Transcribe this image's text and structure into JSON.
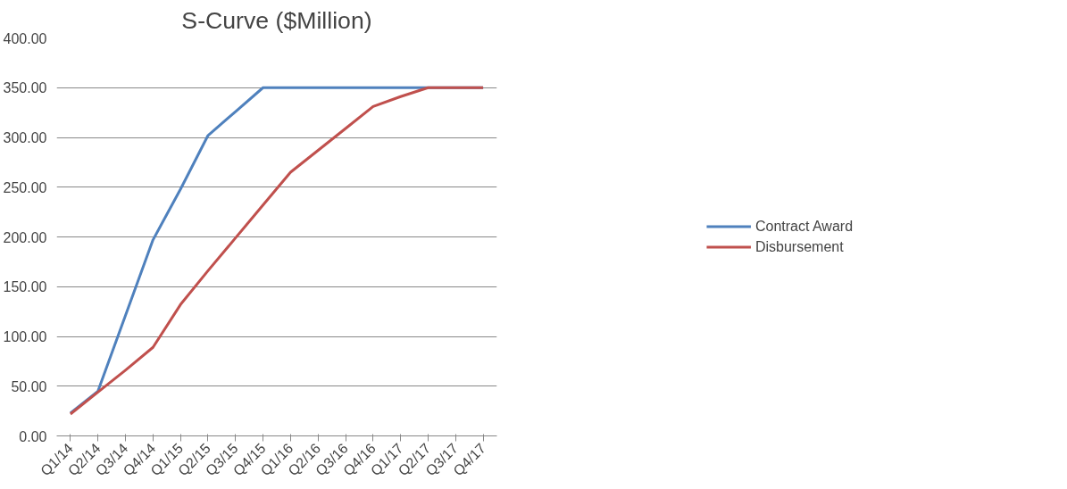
{
  "chart_data": {
    "type": "line",
    "title": "S-Curve ($Million)",
    "categories": [
      "Q1/14",
      "Q2/14",
      "Q3/14",
      "Q4/14",
      "Q1/15",
      "Q2/15",
      "Q3/15",
      "Q4/15",
      "Q1/16",
      "Q2/16",
      "Q3/16",
      "Q4/16",
      "Q1/17",
      "Q2/17",
      "Q3/17",
      "Q4/17"
    ],
    "series": [
      {
        "name": "Contract Award",
        "color": "#4f81bd",
        "values": [
          23,
          45,
          121,
          197,
          248,
          302,
          326,
          350,
          350,
          350,
          350,
          350,
          350,
          350,
          350,
          350
        ]
      },
      {
        "name": "Disbursement",
        "color": "#c0504d",
        "values": [
          22,
          44,
          66,
          89,
          132,
          166,
          199,
          232,
          265,
          287,
          309,
          331,
          341,
          350,
          350,
          350
        ]
      }
    ],
    "ylim": [
      0,
      400
    ],
    "yticks": [
      {
        "value": 0,
        "label": "0.00"
      },
      {
        "value": 50,
        "label": "50.00"
      },
      {
        "value": 100,
        "label": "100.00"
      },
      {
        "value": 150,
        "label": "150.00"
      },
      {
        "value": 200,
        "label": "200.00"
      },
      {
        "value": 250,
        "label": "250.00"
      },
      {
        "value": 300,
        "label": "300.00"
      },
      {
        "value": 350,
        "label": "350.00"
      },
      {
        "value": 400,
        "label": "400.00"
      }
    ],
    "grid": "y",
    "legend": "right",
    "marker": "none",
    "line_style": "solid"
  }
}
